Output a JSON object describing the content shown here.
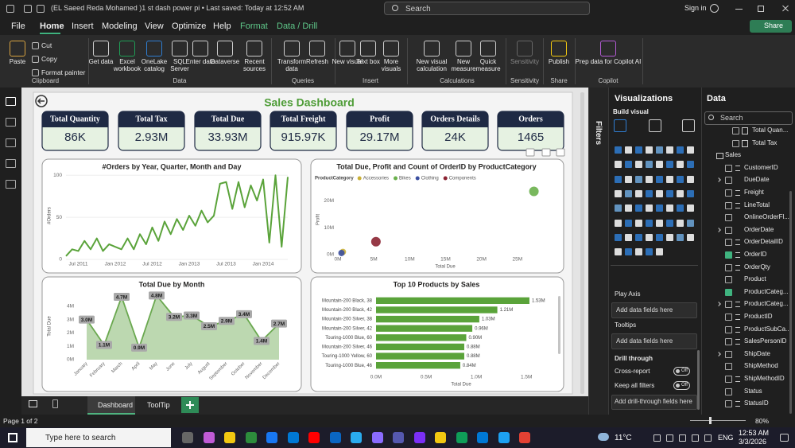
{
  "title_bar": {
    "document": "(EL Saeed Reda Mohamed )1 st dash power pi • Last saved: Today at 12:52 AM",
    "search": "Search",
    "sign_in": "Sign in"
  },
  "menu": {
    "tabs": [
      "File",
      "Home",
      "Insert",
      "Modeling",
      "View",
      "Optimize",
      "Help",
      "Format",
      "Data / Drill"
    ],
    "active": "Home",
    "contextual": [
      "Format",
      "Data / Drill"
    ],
    "share": "Share"
  },
  "ribbon": {
    "groups": [
      {
        "label": "Clipboard",
        "buttons": [
          "Paste",
          "Cut",
          "Copy",
          "Format painter"
        ]
      },
      {
        "label": "Data",
        "buttons": [
          "Get data",
          "Excel workbook",
          "OneLake catalog",
          "SQL Server",
          "Enter data",
          "Dataverse",
          "Recent sources"
        ]
      },
      {
        "label": "Queries",
        "buttons": [
          "Transform data",
          "Refresh"
        ]
      },
      {
        "label": "Insert",
        "buttons": [
          "New visual",
          "Text box",
          "More visuals"
        ]
      },
      {
        "label": "Calculations",
        "buttons": [
          "New visual calculation",
          "New measure",
          "Quick measure"
        ]
      },
      {
        "label": "Sensitivity",
        "buttons": [
          "Sensitivity"
        ]
      },
      {
        "label": "Share",
        "buttons": [
          "Publish"
        ]
      },
      {
        "label": "Copilot",
        "buttons": [
          "Prep data for Copilot AI"
        ]
      }
    ]
  },
  "report": {
    "title": "Sales Dashboard",
    "kpis": [
      {
        "label": "Total Quantity",
        "value": "86K"
      },
      {
        "label": "Total Tax",
        "value": "2.93M"
      },
      {
        "label": "Total Due",
        "value": "33.93M"
      },
      {
        "label": "Total Freight",
        "value": "915.97K"
      },
      {
        "label": "Profit",
        "value": "29.17M"
      },
      {
        "label": "Orders Details",
        "value": "24K"
      },
      {
        "label": "Orders",
        "value": "1465"
      }
    ]
  },
  "chart_data": [
    {
      "type": "line",
      "title": "#Orders by Year, Quarter, Month and Day",
      "y_label": "#Orders",
      "color": "#5aa33a",
      "grid": true,
      "x": [
        "2011-05",
        "2011-06",
        "2011-07",
        "2011-08",
        "2011-09",
        "2011-10",
        "2011-11",
        "2011-12",
        "2012-01",
        "2012-02",
        "2012-03",
        "2012-04",
        "2012-05",
        "2012-06",
        "2012-07",
        "2012-08",
        "2012-09",
        "2012-10",
        "2012-11",
        "2012-12",
        "2013-01",
        "2013-02",
        "2013-03",
        "2013-04",
        "2013-05",
        "2013-06",
        "2013-07",
        "2013-08",
        "2013-09",
        "2013-10",
        "2013-11",
        "2013-12",
        "2014-01",
        "2014-02",
        "2014-03",
        "2014-04",
        "2014-05"
      ],
      "values": [
        4,
        12,
        10,
        22,
        12,
        25,
        10,
        18,
        15,
        12,
        25,
        12,
        30,
        18,
        38,
        22,
        45,
        30,
        48,
        35,
        52,
        40,
        58,
        44,
        52,
        90,
        92,
        60,
        92,
        62,
        88,
        70,
        95,
        20,
        100,
        15,
        98
      ],
      "xlim": [
        "2011-05",
        "2014-05"
      ],
      "xticks": [
        {
          "value": "2011-07",
          "label": "Jul 2011"
        },
        {
          "value": "2012-01",
          "label": "Jan 2012"
        },
        {
          "value": "2012-07",
          "label": "Jul 2012"
        },
        {
          "value": "2013-01",
          "label": "Jan 2013"
        },
        {
          "value": "2013-07",
          "label": "Jul 2013"
        },
        {
          "value": "2014-01",
          "label": "Jan 2014"
        }
      ],
      "ylim": [
        0,
        105
      ],
      "yticks": [
        0,
        50,
        100
      ]
    },
    {
      "type": "scatter",
      "title": "Total Due, Profit and Count of OrderID by ProductCategory",
      "x_label": "Total Due",
      "y_label": "Profit",
      "legend_title": "ProductCategory",
      "series": [
        {
          "name": "Accessories",
          "color": "#c9b037",
          "x": [
            700000
          ],
          "values": [
            1000000
          ]
        },
        {
          "name": "Bikes",
          "color": "#6ab04c",
          "x": [
            27300000
          ],
          "values": [
            23500000
          ]
        },
        {
          "name": "Clothing",
          "color": "#3b4fa0",
          "x": [
            500000
          ],
          "values": [
            600000
          ]
        },
        {
          "name": "Components",
          "color": "#8b2332",
          "x": [
            5300000
          ],
          "values": [
            4800000
          ]
        }
      ],
      "xlim": [
        0,
        31000000
      ],
      "xticks": [
        {
          "value": 0,
          "label": "0M"
        },
        {
          "value": 5000000,
          "label": "5M"
        },
        {
          "value": 10000000,
          "label": "10M"
        },
        {
          "value": 15000000,
          "label": "15M"
        },
        {
          "value": 20000000,
          "label": "20M"
        },
        {
          "value": 25000000,
          "label": "25M"
        }
      ],
      "ylim": [
        0,
        26000000
      ],
      "yticks": [
        {
          "value": 0,
          "label": "0M"
        },
        {
          "value": 10000000,
          "label": "10M"
        },
        {
          "value": 20000000,
          "label": "20M"
        }
      ]
    },
    {
      "type": "area",
      "title": "Total Due by Month",
      "y_label": "Total Due",
      "color": "#6aa84f",
      "categories": [
        "January",
        "February",
        "March",
        "April",
        "May",
        "June",
        "July",
        "August",
        "September",
        "October",
        "November",
        "December"
      ],
      "values": [
        3000000,
        1100000,
        4700000,
        900000,
        4800000,
        3200000,
        3300000,
        2500000,
        2900000,
        3400000,
        1400000,
        2700000
      ],
      "value_labels": [
        "3.0M",
        "1.1M",
        "4.7M",
        "0.9M",
        "4.8M",
        "3.2M",
        "3.3M",
        "2.5M",
        "2.9M",
        "3.4M",
        "1.4M",
        "2.7M"
      ],
      "ylim": [
        0,
        5000000
      ],
      "yticks": [
        {
          "value": 0,
          "label": "0M"
        },
        {
          "value": 1000000,
          "label": "1M"
        },
        {
          "value": 2000000,
          "label": "2M"
        },
        {
          "value": 3000000,
          "label": "3M"
        },
        {
          "value": 4000000,
          "label": "4M"
        }
      ]
    },
    {
      "type": "bar",
      "orientation": "horizontal",
      "title": "Top 10 Products by Sales",
      "x_label": "Total Due",
      "color": "#5aa33a",
      "categories": [
        "Mountain-200 Black, 38",
        "Mountain-200 Black, 42",
        "Mountain-200 Silver, 38",
        "Mountain-200 Silver, 42",
        "Touring-1000 Blue, 60",
        "Mountain-200 Silver, 46",
        "Touring-1000 Yellow, 60",
        "Touring-1000 Blue, 46"
      ],
      "values": [
        1530000,
        1210000,
        1030000,
        960000,
        900000,
        880000,
        880000,
        840000
      ],
      "value_labels": [
        "1.53M",
        "1.21M",
        "1.03M",
        "0.96M",
        "0.90M",
        "0.88M",
        "0.88M",
        "0.84M"
      ],
      "xlim": [
        0,
        1800000
      ],
      "xticks": [
        {
          "value": 0,
          "label": "0.0M"
        },
        {
          "value": 500000,
          "label": "0.5M"
        },
        {
          "value": 1000000,
          "label": "1.0M"
        },
        {
          "value": 1500000,
          "label": "1.5M"
        }
      ]
    }
  ],
  "page_tabs": {
    "tabs": [
      "Dashboard",
      "ToolTip"
    ],
    "active": "Dashboard"
  },
  "filters": "Filters",
  "visualizations": {
    "title": "Visualizations",
    "build": "Build visual",
    "wells": [
      {
        "label": "Play Axis",
        "placeholder": "Add data fields here"
      },
      {
        "label": "Tooltips",
        "placeholder": "Add data fields here"
      }
    ],
    "drill": {
      "title": "Drill through",
      "cross_report": "Cross-report",
      "cross_report_state": "Off",
      "keep_filters": "Keep all filters",
      "keep_filters_state": "Off",
      "placeholder": "Add drill-through fields here"
    }
  },
  "data_pane": {
    "title": "Data",
    "search": "Search",
    "fields": [
      {
        "name": "Total Quan...",
        "level": 2
      },
      {
        "name": "Total Tax",
        "level": 2
      },
      {
        "name": "Sales",
        "level": 0
      },
      {
        "name": "CustomerID",
        "level": 1,
        "sum": true
      },
      {
        "name": "DueDate",
        "level": 1,
        "expandable": true
      },
      {
        "name": "Freight",
        "level": 1,
        "sum": true
      },
      {
        "name": "LineTotal",
        "level": 1,
        "sum": true
      },
      {
        "name": "OnlineOrderFl...",
        "level": 1
      },
      {
        "name": "OrderDate",
        "level": 1,
        "expandable": true
      },
      {
        "name": "OrderDetailID",
        "level": 1,
        "sum": true
      },
      {
        "name": "OrderID",
        "level": 1,
        "sum": true,
        "checked": true
      },
      {
        "name": "OrderQty",
        "level": 1,
        "sum": true
      },
      {
        "name": "Product",
        "level": 1
      },
      {
        "name": "ProductCateg...",
        "level": 1,
        "checked": true
      },
      {
        "name": "ProductCateg...",
        "level": 1,
        "sum": true,
        "expandable": true
      },
      {
        "name": "ProductID",
        "level": 1,
        "sum": true
      },
      {
        "name": "ProductSubCa...",
        "level": 1,
        "sum": true
      },
      {
        "name": "SalesPersonID",
        "level": 1,
        "sum": true
      },
      {
        "name": "ShipDate",
        "level": 1,
        "expandable": true
      },
      {
        "name": "ShipMethod",
        "level": 1
      },
      {
        "name": "ShipMethodID",
        "level": 1,
        "sum": true
      },
      {
        "name": "Status",
        "level": 1
      },
      {
        "name": "StatusID",
        "level": 1,
        "sum": true
      }
    ]
  },
  "status_bar": {
    "page": "Page 1 of 2",
    "zoom": "80%"
  },
  "taskbar": {
    "search": "Type here to search",
    "weather": "11°C",
    "language": "ENG",
    "time": "12:53 AM",
    "date": "3/3/2026"
  }
}
